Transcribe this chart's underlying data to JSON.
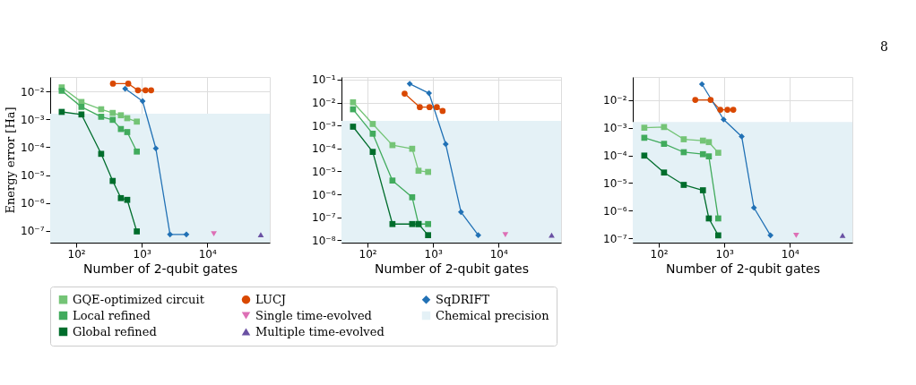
{
  "chart_data": [
    {
      "type": "line",
      "xlabel": "Number of 2-qubit gates",
      "ylabel": "Energy error [Ha]",
      "log": "xy",
      "grid": true,
      "legend": "bottom",
      "xlim": [
        40,
        90000
      ],
      "xticks": [
        {
          "value": 100,
          "label": "10²"
        },
        {
          "value": 1000,
          "label": "10³"
        },
        {
          "value": 10000,
          "label": "10⁴"
        }
      ],
      "ylim": [
        3.8e-08,
        0.033
      ],
      "yticks": [
        {
          "value": 1e-07,
          "label": "10⁻⁷"
        },
        {
          "value": 1e-06,
          "label": "10⁻⁶"
        },
        {
          "value": 1e-05,
          "label": "10⁻⁵"
        },
        {
          "value": 0.0001,
          "label": "10⁻⁴"
        },
        {
          "value": 0.001,
          "label": "10⁻³"
        },
        {
          "value": 0.01,
          "label": "10⁻²"
        }
      ],
      "bands": [
        {
          "axis": "y",
          "from": 3.8e-08,
          "to": 0.0016,
          "label": "Chemical precision",
          "color": "#e4f1f6"
        }
      ],
      "series": [
        {
          "name": "GQE-optimized circuit",
          "type": "line",
          "marker": "square",
          "color": "#74c476",
          "x": [
            60,
            120,
            240,
            360,
            480,
            600,
            840
          ],
          "values": [
            0.014,
            0.0042,
            0.0023,
            0.0017,
            0.0014,
            0.0011,
            0.00083
          ]
        },
        {
          "name": "Local refined",
          "type": "line",
          "marker": "square",
          "color": "#41ab5d",
          "x": [
            60,
            120,
            240,
            360,
            480,
            600,
            840
          ],
          "values": [
            0.0106,
            0.0028,
            0.00124,
            0.00096,
            0.00045,
            0.00035,
            7e-05
          ]
        },
        {
          "name": "Global refined",
          "type": "line",
          "marker": "square",
          "color": "#006d2c",
          "x": [
            60,
            120,
            240,
            360,
            480,
            600,
            840
          ],
          "values": [
            0.00185,
            0.0015,
            5.8e-05,
            6.2e-06,
            1.5e-06,
            1.3e-06,
            9.6e-08
          ]
        },
        {
          "name": "LUCJ",
          "type": "line",
          "marker": "circle",
          "color": "#d94801",
          "x": [
            363,
            622,
            875,
            1140,
            1390
          ],
          "values": [
            0.019,
            0.019,
            0.011,
            0.011,
            0.011
          ]
        },
        {
          "name": "Single time-evolved",
          "type": "scatter",
          "marker": "triangle-down",
          "color": "#dd6fb5",
          "x": [
            12600
          ],
          "values": [
            7.9e-08
          ]
        },
        {
          "name": "Multiple time-evolved",
          "type": "scatter",
          "marker": "triangle",
          "color": "#6a51a3",
          "x": [
            65600
          ],
          "values": [
            7.3e-08
          ]
        },
        {
          "name": "SqDRIFT",
          "type": "line",
          "marker": "diamond",
          "color": "#2171b5",
          "x": [
            558,
            1030,
            1640,
            2700,
            4800
          ],
          "values": [
            0.0126,
            0.0045,
            9.1e-05,
            7.5e-08,
            7.5e-08
          ]
        }
      ]
    },
    {
      "type": "line",
      "xlabel": "Number of 2-qubit gates",
      "log": "xy",
      "grid": true,
      "legend": "bottom",
      "xlim": [
        40,
        90000
      ],
      "xticks": [
        {
          "value": 100,
          "label": "10²"
        },
        {
          "value": 1000,
          "label": "10³"
        },
        {
          "value": 10000,
          "label": "10⁴"
        }
      ],
      "ylim": [
        7.9e-09,
        0.13
      ],
      "yticks": [
        {
          "value": 1e-08,
          "label": "10⁻⁸"
        },
        {
          "value": 1e-07,
          "label": "10⁻⁷"
        },
        {
          "value": 1e-06,
          "label": "10⁻⁶"
        },
        {
          "value": 1e-05,
          "label": "10⁻⁵"
        },
        {
          "value": 0.0001,
          "label": "10⁻⁴"
        },
        {
          "value": 0.001,
          "label": "10⁻³"
        },
        {
          "value": 0.01,
          "label": "10⁻²"
        },
        {
          "value": 0.1,
          "label": "10⁻¹"
        }
      ],
      "bands": [
        {
          "axis": "y",
          "from": 7.9e-09,
          "to": 0.0016,
          "color": "#e4f1f6"
        }
      ],
      "series": [
        {
          "name": "GQE-optimized circuit",
          "type": "line",
          "marker": "square",
          "color": "#74c476",
          "x": [
            60,
            120,
            240,
            480,
            600,
            840
          ],
          "values": [
            0.0103,
            0.00117,
            0.00014,
            9.7e-05,
            1.07e-05,
            9.5e-06
          ]
        },
        {
          "name": "Local refined",
          "type": "line",
          "marker": "square",
          "color": "#41ab5d",
          "x": [
            60,
            120,
            240,
            480,
            600,
            840
          ],
          "values": [
            0.0051,
            0.00044,
            4e-06,
            7.5e-07,
            5.1e-08,
            5.1e-08
          ]
        },
        {
          "name": "Global refined",
          "type": "line",
          "marker": "square",
          "color": "#006d2c",
          "x": [
            60,
            120,
            240,
            480,
            600,
            840
          ],
          "values": [
            0.00089,
            7.1e-05,
            5.1e-08,
            5.1e-08,
            5.1e-08,
            1.67e-08
          ]
        },
        {
          "name": "LUCJ",
          "type": "line",
          "marker": "circle",
          "color": "#d94801",
          "x": [
            368,
            628,
            883,
            1143,
            1400
          ],
          "values": [
            0.0245,
            0.0063,
            0.0063,
            0.0063,
            0.0043
          ]
        },
        {
          "name": "Single time-evolved",
          "type": "scatter",
          "marker": "triangle-down",
          "color": "#dd6fb5",
          "x": [
            12700
          ],
          "values": [
            1.75e-08
          ]
        },
        {
          "name": "Multiple time-evolved",
          "type": "scatter",
          "marker": "triangle",
          "color": "#6a51a3",
          "x": [
            64600
          ],
          "values": [
            1.67e-08
          ]
        },
        {
          "name": "SqDRIFT",
          "type": "line",
          "marker": "diamond",
          "color": "#2171b5",
          "x": [
            440,
            867,
            1560,
            2670,
            4900
          ],
          "values": [
            0.066,
            0.0257,
            0.000155,
            1.7e-07,
            1.67e-08
          ]
        }
      ]
    },
    {
      "type": "line",
      "xlabel": "Number of 2-qubit gates",
      "log": "xy",
      "grid": true,
      "legend": "bottom",
      "annotations": [
        "8"
      ],
      "xlim": [
        40,
        90000
      ],
      "xticks": [
        {
          "value": 100,
          "label": "10²"
        },
        {
          "value": 1000,
          "label": "10³"
        },
        {
          "value": 10000,
          "label": "10⁴"
        }
      ],
      "ylim": [
        7.1e-08,
        0.067
      ],
      "yticks": [
        {
          "value": 1e-07,
          "label": "10⁻⁷"
        },
        {
          "value": 1e-06,
          "label": "10⁻⁶"
        },
        {
          "value": 1e-05,
          "label": "10⁻⁵"
        },
        {
          "value": 0.0001,
          "label": "10⁻⁴"
        },
        {
          "value": 0.001,
          "label": "10⁻³"
        },
        {
          "value": 0.01,
          "label": "10⁻²"
        }
      ],
      "bands": [
        {
          "axis": "y",
          "from": 7.1e-08,
          "to": 0.0016,
          "color": "#e4f1f6"
        }
      ],
      "series": [
        {
          "name": "GQE-optimized circuit",
          "type": "line",
          "marker": "square",
          "color": "#74c476",
          "x": [
            60,
            120,
            240,
            471,
            580,
            807
          ],
          "values": [
            0.00099,
            0.00105,
            0.00038,
            0.00034,
            0.0003,
            0.000124
          ]
        },
        {
          "name": "Local refined",
          "type": "line",
          "marker": "square",
          "color": "#41ab5d",
          "x": [
            60,
            120,
            240,
            471,
            580,
            807
          ],
          "values": [
            0.00043,
            0.00026,
            0.00013,
            0.00011,
            9.2e-05,
            5.3e-07
          ]
        },
        {
          "name": "Global refined",
          "type": "line",
          "marker": "square",
          "color": "#006d2c",
          "x": [
            60,
            120,
            240,
            471,
            580,
            807
          ],
          "values": [
            9.8e-05,
            2.4e-05,
            8.6e-06,
            5.5e-06,
            5.3e-07,
            1.3e-07
          ]
        },
        {
          "name": "LUCJ",
          "type": "line",
          "marker": "circle",
          "color": "#d94801",
          "x": [
            360,
            617,
            867,
            1115,
            1370
          ],
          "values": [
            0.01,
            0.01,
            0.0044,
            0.0044,
            0.0044
          ]
        },
        {
          "name": "Single time-evolved",
          "type": "scatter",
          "marker": "triangle-down",
          "color": "#dd6fb5",
          "x": [
            12500
          ],
          "values": [
            1.3e-07
          ]
        },
        {
          "name": "Multiple time-evolved",
          "type": "scatter",
          "marker": "triangle",
          "color": "#6a51a3",
          "x": [
            63800
          ],
          "values": [
            1.3e-07
          ]
        },
        {
          "name": "SqDRIFT",
          "type": "line",
          "marker": "diamond",
          "color": "#2171b5",
          "x": [
            455,
            975,
            1840,
            2830,
            5060
          ],
          "values": [
            0.037,
            0.00196,
            0.00048,
            1.29e-06,
            1.3e-07
          ]
        }
      ]
    }
  ]
}
